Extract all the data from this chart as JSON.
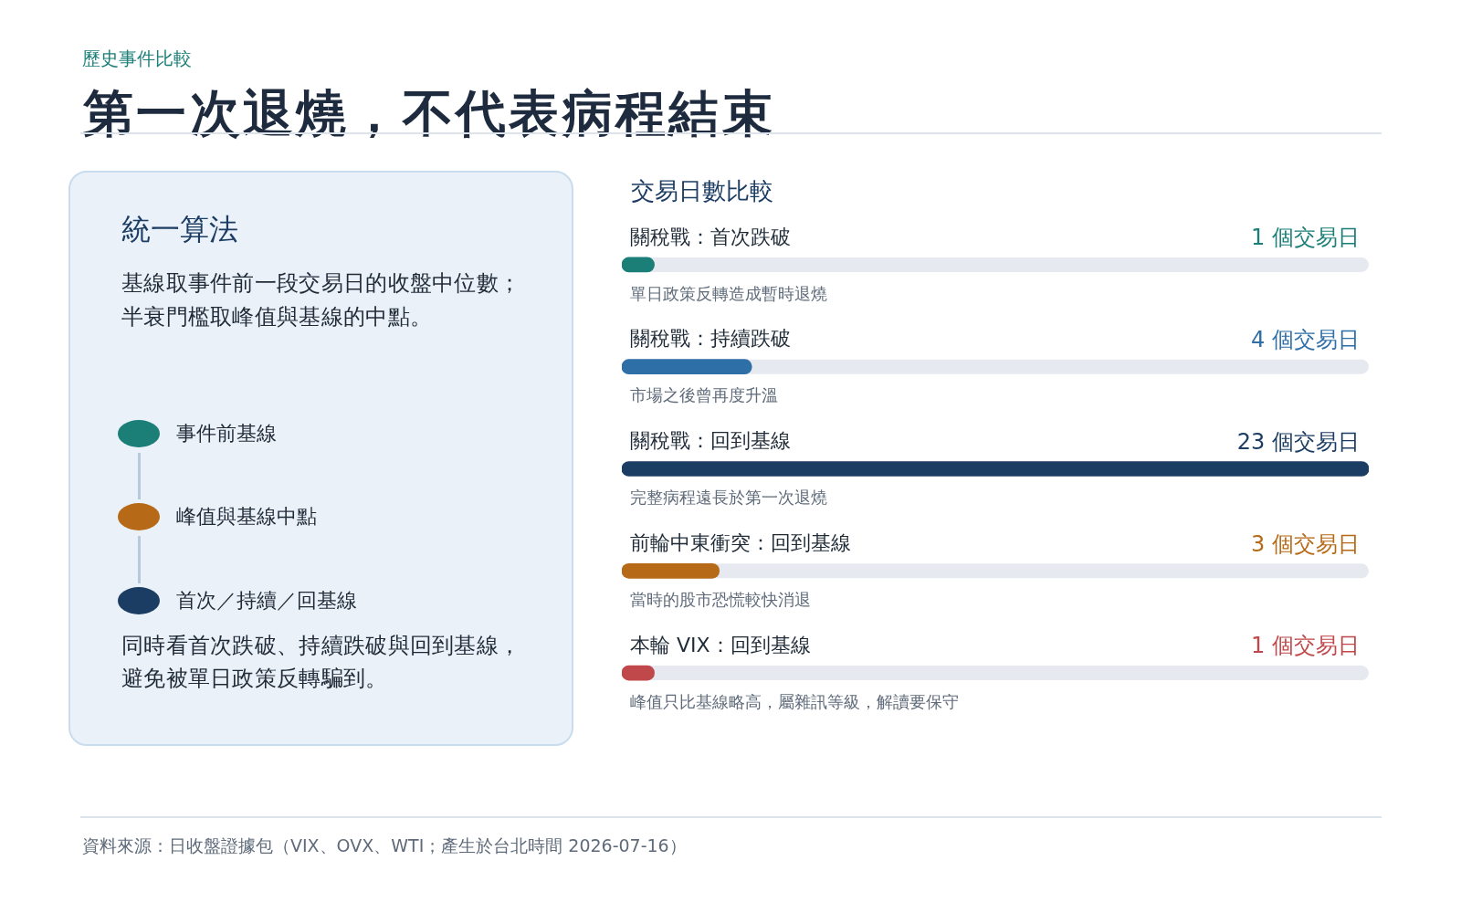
{
  "chart_data": [
    {
      "type": "other",
      "title": "第一次退燒，不代表病程結束",
      "subtitle": "歷史事件比較",
      "annotations": [
        "統一算法",
        "基線取事件前一段交易日的收盤中位數；半衰門檻取峰值與基線的中點。",
        "事件前基線",
        "峰值與基線中點",
        "首次／持續／回基線",
        "同時看首次跌破、持續跌破與回到基線，避免被單日政策反轉騙到。",
        "資料來源：日收盤證據包（VIX、OVX、WTI；產生於台北時間 2026-07-16）"
      ]
    },
    {
      "type": "bar",
      "orientation": "horizontal",
      "title": "交易日數比較",
      "categories": [
        "關稅戰：首次跌破",
        "關稅戰：持續跌破",
        "關稅戰：回到基線",
        "前輪中東衝突：回到基線",
        "本輪 VIX：回到基線"
      ],
      "values": [
        1,
        4,
        23,
        3,
        1
      ],
      "colors": [
        "#1b7f78",
        "#2f6fa8",
        "#1c3d63",
        "#b66a17",
        "#c0474a"
      ],
      "value_labels": [
        "1 個交易日",
        "4 個交易日",
        "23 個交易日",
        "3 個交易日",
        "1 個交易日"
      ],
      "xlim": [
        0,
        23
      ],
      "tick_labels": "y",
      "annotations": [
        "單日政策反轉造成暫時退燒",
        "市場之後曾再度升溫",
        "完整病程遠長於第一次退燒",
        "當時的股市恐慌較快消退",
        "峰值只比基線略高，屬雜訊等級，解讀要保守"
      ]
    }
  ]
}
